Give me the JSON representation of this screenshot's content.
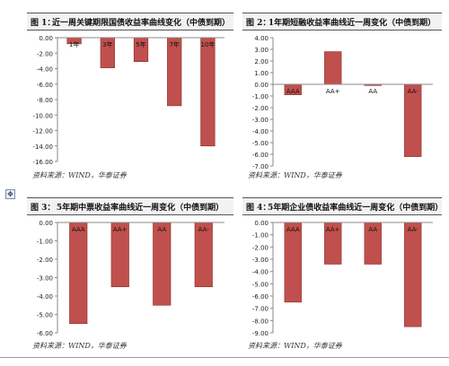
{
  "source_text": "资料来源：WIND，华泰证券",
  "move_handle_icon": "move-handle-icon",
  "chart_data": [
    {
      "type": "bar",
      "label": "图 1：",
      "title": "近一周关键期限国债收益率曲线变化（中债到期）",
      "categories": [
        "1年",
        "3年",
        "5年",
        "7年",
        "10年"
      ],
      "values": [
        -0.8,
        -3.9,
        -3.1,
        -8.8,
        -14.0
      ],
      "yticks": [
        "0.00",
        "-2.00",
        "-4.00",
        "-6.00",
        "-8.00",
        "-10.00",
        "-12.00",
        "-14.00",
        "-16.00"
      ],
      "ylim": [
        -16,
        0
      ],
      "bar_color": "#c0504d",
      "legend": false
    },
    {
      "type": "bar",
      "label": "图 2：",
      "title": "1年期短融收益率曲线近一周变化（中债到期）",
      "categories": [
        "AAA",
        "AA+",
        "AA",
        "AA-"
      ],
      "values": [
        -0.9,
        2.8,
        -0.1,
        -6.2
      ],
      "yticks": [
        "4.00",
        "3.00",
        "2.00",
        "1.00",
        "0.00",
        "-1.00",
        "-2.00",
        "-3.00",
        "-4.00",
        "-5.00",
        "-6.00",
        "-7.00"
      ],
      "ylim": [
        -7,
        4
      ],
      "bar_color": "#c0504d",
      "legend": false
    },
    {
      "type": "bar",
      "label": "图 3：",
      "title": "5年期中票收益率曲线近一周变化（中债到期）",
      "categories": [
        "AAA",
        "AA+",
        "AA",
        "AA-"
      ],
      "values": [
        -5.5,
        -3.5,
        -4.5,
        -3.5
      ],
      "yticks": [
        "0.00",
        "-1.00",
        "-2.00",
        "-3.00",
        "-4.00",
        "-5.00",
        "-6.00"
      ],
      "ylim": [
        -6,
        0
      ],
      "bar_color": "#c0504d",
      "legend": false
    },
    {
      "type": "bar",
      "label": "图 4：",
      "title": "5年期企业债收益率曲线近一周变化（中债到期）",
      "categories": [
        "AAA",
        "AA+",
        "AA",
        "AA-"
      ],
      "values": [
        -6.5,
        -3.4,
        -3.4,
        -8.5
      ],
      "yticks": [
        "0.00",
        "-1.00",
        "-2.00",
        "-3.00",
        "-4.00",
        "-5.00",
        "-6.00",
        "-7.00",
        "-8.00",
        "-9.00"
      ],
      "ylim": [
        -9,
        0
      ],
      "bar_color": "#c0504d",
      "legend": false
    }
  ]
}
